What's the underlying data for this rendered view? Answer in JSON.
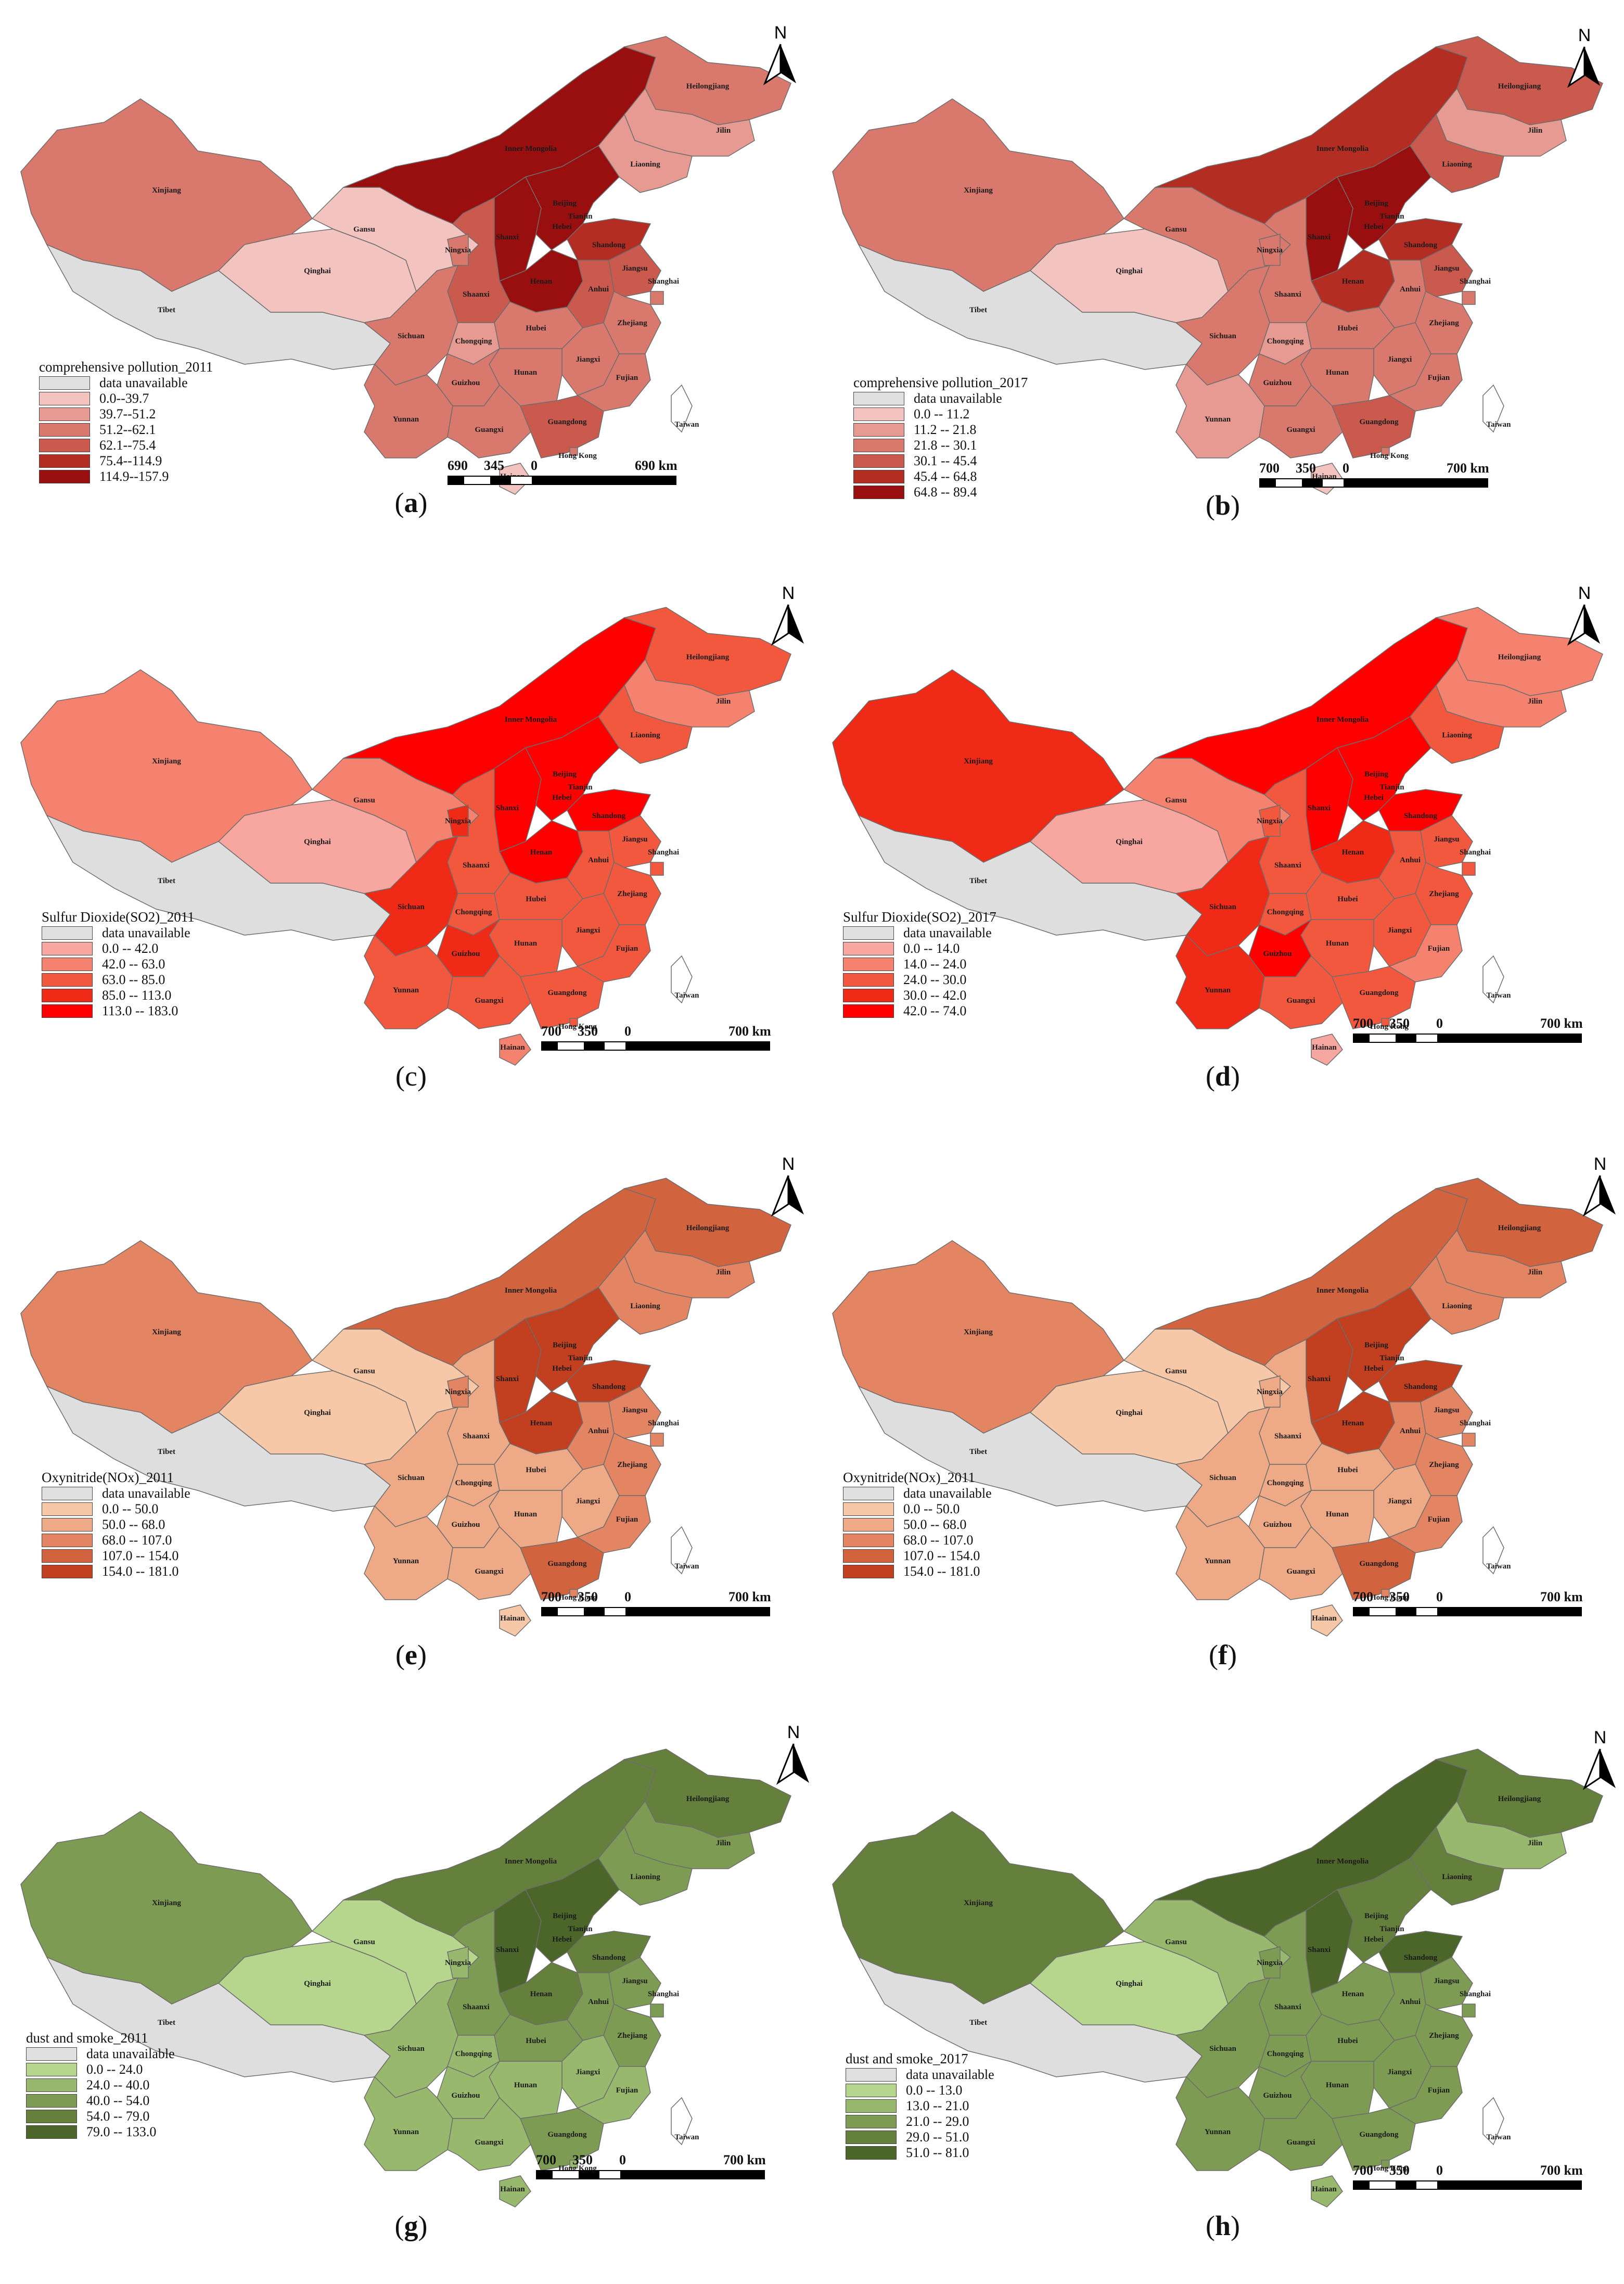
{
  "panels": [
    {
      "caption": "a",
      "caption_bold": true,
      "legend_title": "comprehensive pollution_2011",
      "legend": [
        {
          "label": "data unavailable",
          "color": "#e0e0e0"
        },
        {
          "label": "0.0--39.7",
          "color": "#f2c3bf"
        },
        {
          "label": "39.7--51.2",
          "color": "#e69a91"
        },
        {
          "label": "51.2--62.1",
          "color": "#d9796d"
        },
        {
          "label": "62.1--75.4",
          "color": "#c95a4d"
        },
        {
          "label": "75.4--114.9",
          "color": "#b32d22"
        },
        {
          "label": "114.9--157.9",
          "color": "#990f0f"
        }
      ],
      "scale": [
        "690",
        "345",
        "0",
        "690 km"
      ],
      "palette": [
        "#f2c3bf",
        "#e69a91",
        "#d9796d",
        "#c95a4d",
        "#b32d22",
        "#990f0f"
      ]
    },
    {
      "caption": "b",
      "caption_bold": true,
      "legend_title": "comprehensive pollution_2017",
      "legend": [
        {
          "label": "data unavailable",
          "color": "#e0e0e0"
        },
        {
          "label": "0.0 -- 11.2",
          "color": "#f2c3bf"
        },
        {
          "label": "11.2 -- 21.8",
          "color": "#e69a91"
        },
        {
          "label": "21.8 -- 30.1",
          "color": "#d9796d"
        },
        {
          "label": "30.1 -- 45.4",
          "color": "#c95a4d"
        },
        {
          "label": "45.4 -- 64.8",
          "color": "#b32d22"
        },
        {
          "label": "64.8 -- 89.4",
          "color": "#990f0f"
        }
      ],
      "scale": [
        "700",
        "350",
        "0",
        "700 km"
      ],
      "palette": [
        "#f2c3bf",
        "#e69a91",
        "#d9796d",
        "#c95a4d",
        "#b32d22",
        "#990f0f"
      ]
    },
    {
      "caption": "c",
      "caption_bold": false,
      "legend_title": "Sulfur Dioxide(SO2)_2011",
      "legend": [
        {
          "label": "data unavailable",
          "color": "#e0e0e0"
        },
        {
          "label": "0.0  --  42.0",
          "color": "#f7a6a0"
        },
        {
          "label": "42.0  --  63.0",
          "color": "#f5826f"
        },
        {
          "label": "63.0  --  85.0",
          "color": "#f2583e"
        },
        {
          "label": "85.0  --  113.0",
          "color": "#ef2a16"
        },
        {
          "label": "113.0 -- 183.0",
          "color": "#ff0000"
        }
      ],
      "scale": [
        "700",
        "350",
        "0",
        "700 km"
      ],
      "palette": [
        "#f7a6a0",
        "#f5826f",
        "#f2583e",
        "#ef2a16",
        "#ff0000"
      ]
    },
    {
      "caption": "d",
      "caption_bold": true,
      "legend_title": "Sulfur Dioxide(SO2)_2017",
      "legend": [
        {
          "label": "data unavailable",
          "color": "#e0e0e0"
        },
        {
          "label": "0.0  --  14.0",
          "color": "#f7a6a0"
        },
        {
          "label": "14.0 -- 24.0",
          "color": "#f5826f"
        },
        {
          "label": "24.0 -- 30.0",
          "color": "#f2583e"
        },
        {
          "label": "30.0 -- 42.0",
          "color": "#ef2a16"
        },
        {
          "label": "42.0 -- 74.0",
          "color": "#ff0000"
        }
      ],
      "scale": [
        "700",
        "350",
        "0",
        "700 km"
      ],
      "palette": [
        "#f7a6a0",
        "#f5826f",
        "#f2583e",
        "#ef2a16",
        "#ff0000"
      ]
    },
    {
      "caption": "e",
      "caption_bold": true,
      "legend_title": "Oxynitride(NOx)_2011",
      "legend": [
        {
          "label": "data unavailable",
          "color": "#e0e0e0"
        },
        {
          "label": "0.0 -- 50.0",
          "color": "#f6c8a8"
        },
        {
          "label": "50.0 -- 68.0",
          "color": "#eeaa86"
        },
        {
          "label": "68.0 -- 107.0",
          "color": "#e38462"
        },
        {
          "label": "107.0 -- 154.0",
          "color": "#d2633f"
        },
        {
          "label": "154.0 -- 181.0",
          "color": "#c2401f"
        }
      ],
      "scale": [
        "700",
        "350",
        "0",
        "700 km"
      ],
      "palette": [
        "#f6c8a8",
        "#eeaa86",
        "#e38462",
        "#d2633f",
        "#c2401f"
      ]
    },
    {
      "caption": "f",
      "caption_bold": true,
      "legend_title": "Oxynitride(NOx)_2011",
      "legend": [
        {
          "label": "data unavailable",
          "color": "#e0e0e0"
        },
        {
          "label": "0.0 -- 50.0",
          "color": "#f6c8a8"
        },
        {
          "label": "50.0 -- 68.0",
          "color": "#eeaa86"
        },
        {
          "label": "68.0 -- 107.0",
          "color": "#e38462"
        },
        {
          "label": "107.0 -- 154.0",
          "color": "#d2633f"
        },
        {
          "label": "154.0 -- 181.0",
          "color": "#c2401f"
        }
      ],
      "scale": [
        "700",
        "350",
        "0",
        "700 km"
      ],
      "palette": [
        "#f6c8a8",
        "#eeaa86",
        "#e38462",
        "#d2633f",
        "#c2401f"
      ]
    },
    {
      "caption": "g",
      "caption_bold": true,
      "legend_title": "dust and smoke_2011",
      "legend": [
        {
          "label": "data unavailable",
          "color": "#e0e0e0"
        },
        {
          "label": "0.0  --  24.0",
          "color": "#b6d68d"
        },
        {
          "label": "24.0 -- 40.0",
          "color": "#98b96d"
        },
        {
          "label": "40.0 -- 54.0",
          "color": "#7d9b52"
        },
        {
          "label": "54.0 -- 79.0",
          "color": "#657f3c"
        },
        {
          "label": "79.0 -- 133.0",
          "color": "#4c6528"
        }
      ],
      "scale": [
        "700",
        "350",
        "0",
        "700 km"
      ],
      "palette": [
        "#b6d68d",
        "#98b96d",
        "#7d9b52",
        "#657f3c",
        "#4c6528"
      ]
    },
    {
      "caption": "h",
      "caption_bold": true,
      "legend_title": "dust and smoke_2017",
      "legend": [
        {
          "label": "data unavailable",
          "color": "#e0e0e0"
        },
        {
          "label": "0.0 -- 13.0",
          "color": "#b6d68d"
        },
        {
          "label": "13.0 -- 21.0",
          "color": "#98b96d"
        },
        {
          "label": "21.0 -- 29.0",
          "color": "#7d9b52"
        },
        {
          "label": "29.0 -- 51.0",
          "color": "#657f3c"
        },
        {
          "label": "51.0 -- 81.0",
          "color": "#4c6528"
        }
      ],
      "scale": [
        "700",
        "350",
        "0",
        "700 km"
      ],
      "palette": [
        "#b6d68d",
        "#98b96d",
        "#7d9b52",
        "#657f3c",
        "#4c6528"
      ]
    }
  ],
  "province_labels": [
    "Xinjiang",
    "Tibet",
    "Qinghai",
    "Gansu",
    "Inner Mongolia",
    "Heilongjiang",
    "Jilin",
    "Liaoning",
    "Beijing",
    "Tianjin",
    "Hebei",
    "Shanxi",
    "Shandong",
    "Henan",
    "Shaanxi",
    "Ningxia",
    "Sichuan",
    "Chongqing",
    "Hubei",
    "Anhui",
    "Jiangsu",
    "Shanghai",
    "Zhejiang",
    "Jiangxi",
    "Hunan",
    "Guizhou",
    "Yunnan",
    "Guangxi",
    "Guangdong",
    "Fujian",
    "Hong Kong",
    "Hainan",
    "Taiwan"
  ],
  "north_label": "N"
}
